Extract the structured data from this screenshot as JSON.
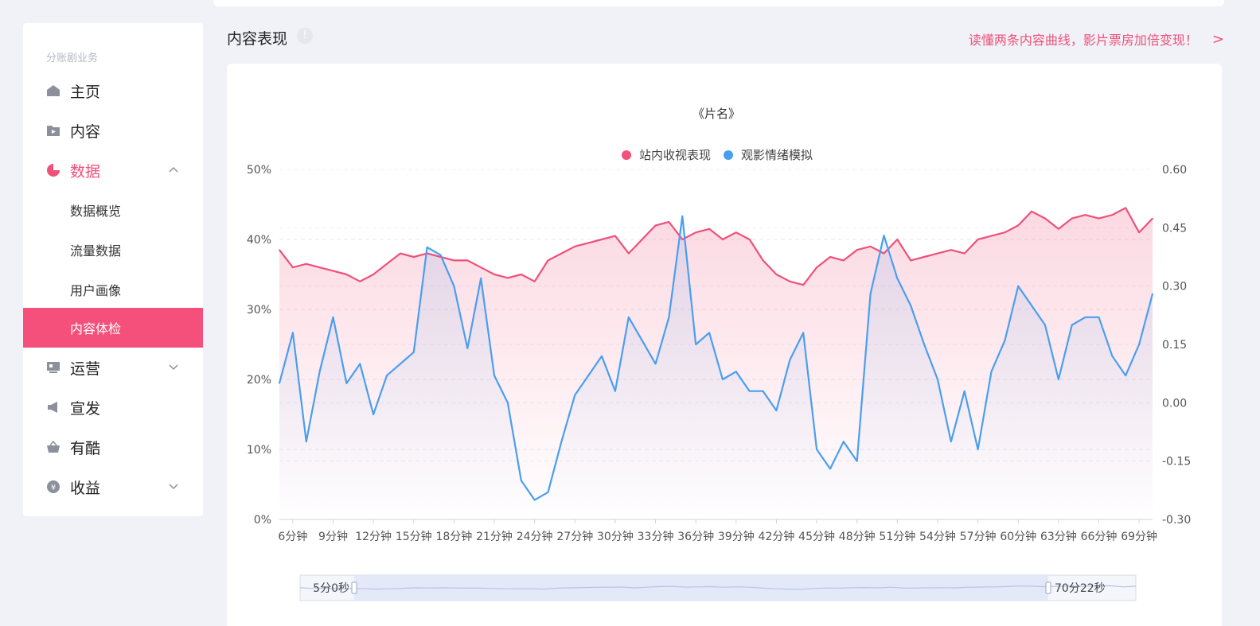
{
  "sidebar": {
    "section_title": "分账剧业务",
    "items": [
      {
        "label": "主页",
        "icon": "home-icon"
      },
      {
        "label": "内容",
        "icon": "folder-play-icon"
      },
      {
        "label": "数据",
        "icon": "pie-chart-icon",
        "active": true,
        "expanded": true
      },
      {
        "label": "运营",
        "icon": "monitor-icon"
      },
      {
        "label": "宣发",
        "icon": "megaphone-icon"
      },
      {
        "label": "有酷",
        "icon": "basket-icon"
      },
      {
        "label": "收益",
        "icon": "coin-icon"
      }
    ],
    "data_subitems": [
      {
        "label": "数据概览"
      },
      {
        "label": "流量数据"
      },
      {
        "label": "用户画像"
      },
      {
        "label": "内容体检",
        "selected": true
      }
    ]
  },
  "header": {
    "title": "内容表现",
    "info_icon": "info-icon",
    "promo_text": "读懂两条内容曲线，影片票房加倍变现！",
    "promo_arrow": ">"
  },
  "colors": {
    "accent": "#f5507b",
    "pink_line": "#f0507a",
    "blue_line": "#4a9ef0"
  },
  "zoom": {
    "start_label": "5分0秒",
    "end_label": "70分22秒"
  },
  "chart_data": {
    "type": "line",
    "title": "《片名》",
    "legend_position": "top-center",
    "x_tick_labels": [
      "6分钟",
      "9分钟",
      "12分钟",
      "15分钟",
      "18分钟",
      "21分钟",
      "24分钟",
      "27分钟",
      "30分钟",
      "33分钟",
      "36分钟",
      "39分钟",
      "42分钟",
      "45分钟",
      "48分钟",
      "51分钟",
      "54分钟",
      "57分钟",
      "60分钟",
      "63分钟",
      "66分钟",
      "69分钟"
    ],
    "y_left": {
      "ticks": [
        "0%",
        "10%",
        "20%",
        "30%",
        "40%",
        "50%"
      ],
      "ylim": [
        0,
        50
      ]
    },
    "y_right": {
      "ticks": [
        "-0.30",
        "-0.15",
        "0.00",
        "0.15",
        "0.30",
        "0.45",
        "0.60"
      ],
      "ylim": [
        -0.3,
        0.6
      ]
    },
    "grid": "horizontal-dashed",
    "x": [
      5,
      6,
      7,
      8,
      9,
      10,
      11,
      12,
      13,
      14,
      15,
      16,
      17,
      18,
      19,
      20,
      21,
      22,
      23,
      24,
      25,
      26,
      27,
      28,
      29,
      30,
      31,
      32,
      33,
      34,
      35,
      36,
      37,
      38,
      39,
      40,
      41,
      42,
      43,
      44,
      45,
      46,
      47,
      48,
      49,
      50,
      51,
      52,
      53,
      54,
      55,
      56,
      57,
      58,
      59,
      60,
      61,
      62,
      63,
      64,
      65,
      66,
      67,
      68,
      69,
      70
    ],
    "series": [
      {
        "name": "站内收视表现",
        "axis": "left",
        "color": "#f0507a",
        "values": [
          38.5,
          36,
          36.5,
          36,
          35.5,
          35,
          34,
          35,
          36.5,
          38,
          37.5,
          38,
          37.5,
          37,
          37,
          36,
          35,
          34.5,
          35,
          34,
          37,
          38,
          39,
          39.5,
          40,
          40.5,
          38,
          40,
          42,
          42.5,
          40,
          41,
          41.5,
          40,
          41,
          40,
          37,
          35,
          34,
          33.5,
          36,
          37.5,
          37,
          38.5,
          39,
          38,
          40,
          37,
          37.5,
          38,
          38.5,
          38,
          40,
          40.5,
          41,
          42,
          44,
          43,
          41.5,
          43,
          43.5,
          43,
          43.5,
          44.5,
          41,
          43
        ]
      },
      {
        "name": "观影情绪模拟",
        "axis": "right",
        "color": "#4a9ef0",
        "values": [
          0.05,
          0.18,
          -0.1,
          0.08,
          0.22,
          0.05,
          0.1,
          -0.03,
          0.07,
          0.1,
          0.13,
          0.4,
          0.38,
          0.3,
          0.14,
          0.32,
          0.07,
          0.0,
          -0.2,
          -0.25,
          -0.23,
          -0.1,
          0.02,
          0.07,
          0.12,
          0.03,
          0.22,
          0.16,
          0.1,
          0.22,
          0.48,
          0.15,
          0.18,
          0.06,
          0.08,
          0.03,
          0.03,
          -0.02,
          0.11,
          0.18,
          -0.12,
          -0.17,
          -0.1,
          -0.15,
          0.28,
          0.43,
          0.32,
          0.25,
          0.15,
          0.06,
          -0.1,
          0.03,
          -0.12,
          0.08,
          0.16,
          0.3,
          0.25,
          0.2,
          0.06,
          0.2,
          0.22,
          0.22,
          0.12,
          0.07,
          0.15,
          0.28
        ]
      }
    ]
  }
}
